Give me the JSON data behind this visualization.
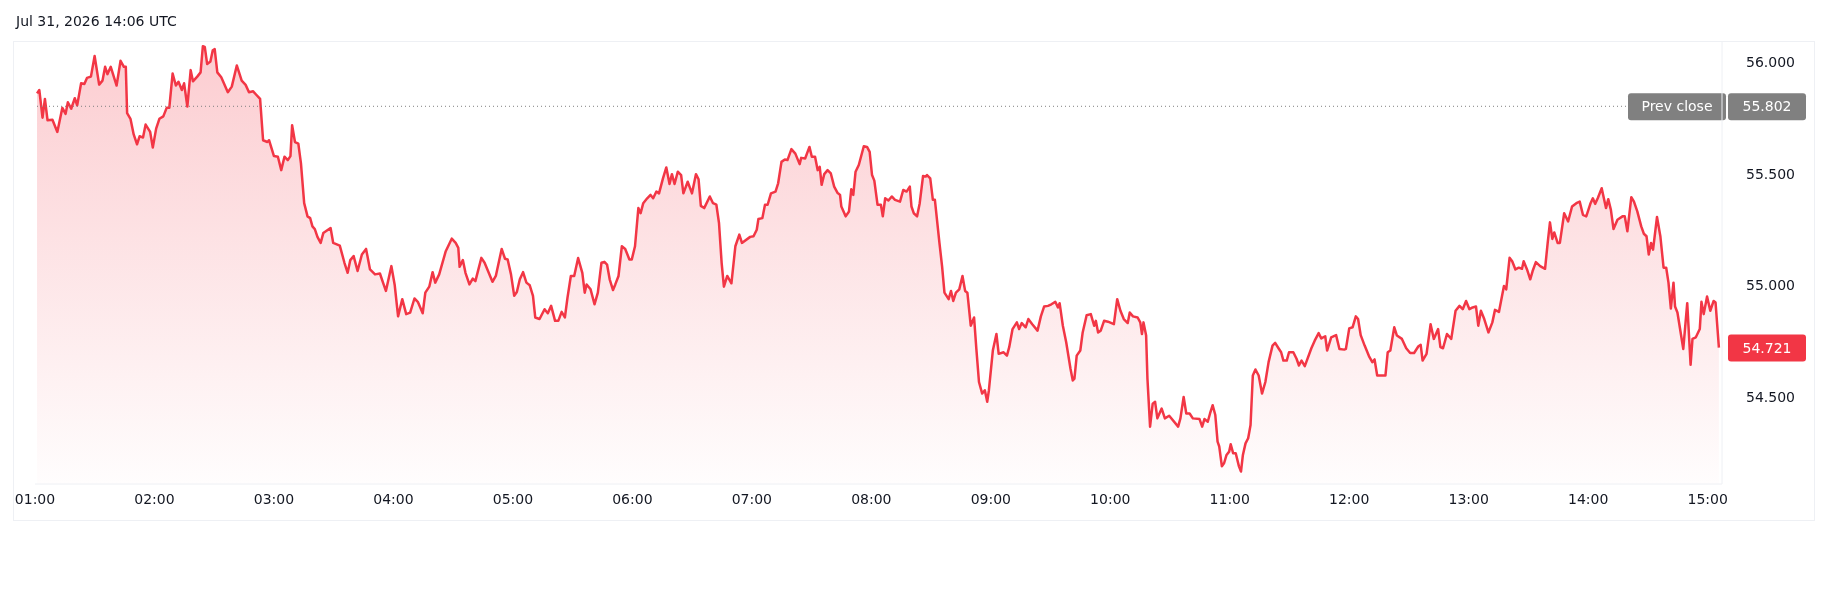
{
  "chart_data": {
    "type": "area",
    "title": "Jul 31, 2026 14:06 UTC",
    "x": [
      1.017,
      1.036,
      1.063,
      1.083,
      1.105,
      1.146,
      1.187,
      1.229,
      1.256,
      1.275,
      1.303,
      1.333,
      1.353,
      1.386,
      1.413,
      1.435,
      1.468,
      1.499,
      1.537,
      1.565,
      1.587,
      1.606,
      1.634,
      1.683,
      1.716,
      1.744,
      1.76,
      1.771,
      1.799,
      1.826,
      1.854,
      1.876,
      1.904,
      1.926,
      1.964,
      1.986,
      2.014,
      2.041,
      2.074,
      2.102,
      2.124,
      2.152,
      2.179,
      2.201,
      2.229,
      2.248,
      2.275,
      2.303,
      2.322,
      2.358,
      2.386,
      2.405,
      2.421,
      2.441,
      2.468,
      2.488,
      2.504,
      2.526,
      2.559,
      2.614,
      2.647,
      2.689,
      2.73,
      2.763,
      2.791,
      2.826,
      2.846,
      2.884,
      2.909,
      2.945,
      2.959,
      3.0,
      3.033,
      3.061,
      3.088,
      3.116,
      3.138,
      3.152,
      3.176,
      3.204,
      3.226,
      3.253,
      3.281,
      3.303,
      3.322,
      3.342,
      3.364,
      3.391,
      3.413,
      3.474,
      3.496,
      3.551,
      3.59,
      3.617,
      3.639,
      3.667,
      3.7,
      3.736,
      3.771,
      3.804,
      3.846,
      3.887,
      3.915,
      3.937,
      3.983,
      4.011,
      4.039,
      4.074,
      4.107,
      4.14,
      4.176,
      4.204,
      4.245,
      4.267,
      4.3,
      4.328,
      4.35,
      4.383,
      4.438,
      4.488,
      4.521,
      4.543,
      4.554,
      4.581,
      4.603,
      4.636,
      4.664,
      4.686,
      4.736,
      4.763,
      4.829,
      4.857,
      4.906,
      4.934,
      4.956,
      4.984,
      5.011,
      5.033,
      5.058,
      5.085,
      5.113,
      5.141,
      5.168,
      5.187,
      5.223,
      5.265,
      5.292,
      5.32,
      5.353,
      5.38,
      5.408,
      5.435,
      5.457,
      5.485,
      5.513,
      5.546,
      5.581,
      5.601,
      5.617,
      5.65,
      5.683,
      5.711,
      5.741,
      5.766,
      5.788,
      5.81,
      5.838,
      5.857,
      5.884,
      5.912,
      5.94,
      5.975,
      5.995,
      6.022,
      6.05,
      6.069,
      6.091,
      6.124,
      6.152,
      6.174,
      6.201,
      6.223,
      6.256,
      6.284,
      6.311,
      6.331,
      6.353,
      6.38,
      6.408,
      6.427,
      6.463,
      6.499,
      6.532,
      6.554,
      6.573,
      6.601,
      6.648,
      6.675,
      6.703,
      6.725,
      6.747,
      6.766,
      6.794,
      6.829,
      6.862,
      6.895,
      6.917,
      6.986,
      7.014,
      7.041,
      7.055,
      7.088,
      7.11,
      7.132,
      7.16,
      7.198,
      7.22,
      7.248,
      7.276,
      7.298,
      7.331,
      7.364,
      7.4,
      7.413,
      7.446,
      7.482,
      7.502,
      7.529,
      7.551,
      7.568,
      7.584,
      7.606,
      7.634,
      7.661,
      7.689,
      7.716,
      7.738,
      7.749,
      7.785,
      7.813,
      7.832,
      7.849,
      7.868,
      7.895,
      7.937,
      7.964,
      7.986,
      8.006,
      8.025,
      8.052,
      8.08,
      8.096,
      8.116,
      8.143,
      8.171,
      8.198,
      8.24,
      8.267,
      8.295,
      8.322,
      8.336,
      8.355,
      8.383,
      8.405,
      8.433,
      8.455,
      8.466,
      8.493,
      8.515,
      8.532,
      8.57,
      8.592,
      8.612,
      8.647,
      8.667,
      8.686,
      8.708,
      8.736,
      8.763,
      8.785,
      8.804,
      8.832,
      8.86,
      8.879,
      8.901,
      8.928,
      8.95,
      8.97,
      8.984,
      9.017,
      9.047,
      9.066,
      9.107,
      9.135,
      9.154,
      9.182,
      9.218,
      9.237,
      9.259,
      9.292,
      9.314,
      9.347,
      9.391,
      9.419,
      9.446,
      9.479,
      9.507,
      9.54,
      9.562,
      9.576,
      9.603,
      9.631,
      9.667,
      9.686,
      9.7,
      9.719,
      9.749,
      9.769,
      9.802,
      9.837,
      9.865,
      9.879,
      9.898,
      9.92,
      9.948,
      9.981,
      10.03,
      10.058,
      10.085,
      10.113,
      10.146,
      10.163,
      10.19,
      10.229,
      10.251,
      10.265,
      10.278,
      10.3,
      10.311,
      10.333,
      10.355,
      10.375,
      10.394,
      10.43,
      10.457,
      10.493,
      10.568,
      10.587,
      10.614,
      10.636,
      10.664,
      10.691,
      10.747,
      10.769,
      10.788,
      10.816,
      10.835,
      10.857,
      10.879,
      10.898,
      10.912,
      10.934,
      10.953,
      10.973,
      10.995,
      11.008,
      11.028,
      11.05,
      11.077,
      11.094,
      11.11,
      11.132,
      11.154,
      11.174,
      11.193,
      11.215,
      11.242,
      11.27,
      11.298,
      11.325,
      11.358,
      11.38,
      11.408,
      11.43,
      11.449,
      11.477,
      11.496,
      11.532,
      11.559,
      11.579,
      11.601,
      11.628,
      11.683,
      11.711,
      11.744,
      11.766,
      11.799,
      11.815,
      11.849,
      11.89,
      11.918,
      11.959,
      11.972,
      12.0,
      12.028,
      12.055,
      12.074,
      12.096,
      12.129,
      12.165,
      12.193,
      12.212,
      12.234,
      12.262,
      12.303,
      12.322,
      12.344,
      12.377,
      12.399,
      12.441,
      12.477,
      12.51,
      12.543,
      12.579,
      12.598,
      12.614,
      12.647,
      12.681,
      12.708,
      12.744,
      12.763,
      12.785,
      12.818,
      12.854,
      12.89,
      12.923,
      12.95,
      12.978,
      13.006,
      13.033,
      13.061,
      13.08,
      13.102,
      13.13,
      13.165,
      13.198,
      13.22,
      13.253,
      13.295,
      13.314,
      13.342,
      13.364,
      13.391,
      13.419,
      13.446,
      13.46,
      13.488,
      13.515,
      13.535,
      13.562,
      13.598,
      13.639,
      13.661,
      13.68,
      13.7,
      13.716,
      13.744,
      13.763,
      13.799,
      13.832,
      13.865,
      13.901,
      13.929,
      13.956,
      13.984,
      14.02,
      14.039,
      14.058,
      14.08,
      14.113,
      14.149,
      14.168,
      14.19,
      14.212,
      14.245,
      14.287,
      14.306,
      14.328,
      14.361,
      14.383,
      14.411,
      14.444,
      14.466,
      14.488,
      14.507,
      14.526,
      14.543,
      14.576,
      14.604,
      14.631,
      14.653,
      14.672,
      14.692,
      14.714,
      14.727,
      14.747,
      14.796,
      14.829,
      14.857,
      14.873,
      14.901,
      14.934,
      14.948,
      14.967,
      14.995,
      15.022,
      15.05,
      15.066,
      15.094
    ],
    "series": [
      {
        "color": "#f23645",
        "values": [
          55.86,
          55.875,
          55.751,
          55.835,
          55.739,
          55.742,
          55.687,
          55.795,
          55.768,
          55.82,
          55.791,
          55.838,
          55.806,
          55.905,
          55.902,
          55.929,
          55.935,
          56.027,
          55.899,
          55.917,
          55.979,
          55.946,
          55.979,
          55.895,
          56.006,
          55.979,
          55.979,
          55.771,
          55.746,
          55.676,
          55.632,
          55.668,
          55.662,
          55.72,
          55.687,
          55.617,
          55.702,
          55.746,
          55.757,
          55.795,
          55.795,
          55.949,
          55.895,
          55.912,
          55.875,
          55.905,
          55.801,
          55.964,
          55.914,
          55.935,
          55.954,
          56.071,
          56.068,
          55.991,
          56.003,
          56.053,
          56.058,
          55.954,
          55.932,
          55.865,
          55.89,
          55.985,
          55.917,
          55.898,
          55.865,
          55.869,
          55.857,
          55.835,
          55.65,
          55.642,
          55.65,
          55.579,
          55.576,
          55.516,
          55.576,
          55.561,
          55.579,
          55.717,
          55.642,
          55.635,
          55.546,
          55.368,
          55.309,
          55.301,
          55.264,
          55.252,
          55.217,
          55.19,
          55.234,
          55.257,
          55.19,
          55.178,
          55.101,
          55.056,
          55.113,
          55.131,
          55.064,
          55.138,
          55.163,
          55.071,
          55.049,
          55.053,
          55.009,
          54.975,
          55.086,
          55.0,
          54.861,
          54.938,
          54.871,
          54.878,
          54.941,
          54.926,
          54.875,
          54.967,
          54.994,
          55.059,
          55.012,
          55.049,
          55.153,
          55.209,
          55.19,
          55.168,
          55.083,
          55.113,
          55.056,
          55.004,
          55.03,
          55.019,
          55.123,
          55.101,
          55.016,
          55.042,
          55.163,
          55.119,
          55.116,
          55.049,
          54.953,
          54.97,
          55.027,
          55.059,
          55.012,
          55.0,
          54.953,
          54.856,
          54.849,
          54.893,
          54.875,
          54.908,
          54.841,
          54.841,
          54.881,
          54.856,
          54.945,
          55.042,
          55.042,
          55.122,
          55.056,
          54.967,
          55.004,
          54.982,
          54.915,
          54.967,
          55.101,
          55.105,
          55.093,
          55.027,
          54.979,
          55.004,
          55.042,
          55.175,
          55.163,
          55.116,
          55.116,
          55.175,
          55.346,
          55.323,
          55.368,
          55.39,
          55.405,
          55.39,
          55.42,
          55.412,
          55.479,
          55.528,
          55.454,
          55.498,
          55.454,
          55.509,
          55.494,
          55.412,
          55.464,
          55.412,
          55.498,
          55.475,
          55.356,
          55.346,
          55.398,
          55.368,
          55.361,
          55.279,
          55.101,
          54.994,
          55.042,
          55.009,
          55.175,
          55.227,
          55.19,
          55.217,
          55.22,
          55.249,
          55.297,
          55.301,
          55.361,
          55.361,
          55.412,
          55.42,
          55.457,
          55.553,
          55.564,
          55.561,
          55.61,
          55.59,
          55.543,
          55.571,
          55.568,
          55.62,
          55.576,
          55.576,
          55.516,
          55.531,
          55.45,
          55.498,
          55.516,
          55.501,
          55.442,
          55.415,
          55.405,
          55.353,
          55.309,
          55.331,
          55.43,
          55.405,
          55.509,
          55.539,
          55.623,
          55.62,
          55.598,
          55.494,
          55.469,
          55.361,
          55.361,
          55.309,
          55.39,
          55.38,
          55.398,
          55.383,
          55.375,
          55.427,
          55.42,
          55.442,
          55.353,
          55.323,
          55.309,
          55.368,
          55.49,
          55.487,
          55.494,
          55.479,
          55.383,
          55.383,
          55.19,
          55.086,
          54.967,
          54.938,
          54.975,
          54.93,
          54.967,
          54.982,
          55.042,
          54.975,
          54.967,
          54.819,
          54.856,
          54.715,
          54.567,
          54.515,
          54.53,
          54.478,
          54.53,
          54.708,
          54.782,
          54.693,
          54.7,
          54.685,
          54.723,
          54.804,
          54.834,
          54.804,
          54.831,
          54.812,
          54.849,
          54.826,
          54.797,
          54.861,
          54.905,
          54.908,
          54.915,
          54.926,
          54.901,
          54.92,
          54.819,
          54.745,
          54.626,
          54.574,
          54.582,
          54.685,
          54.708,
          54.789,
          54.866,
          54.871,
          54.819,
          54.841,
          54.789,
          54.797,
          54.841,
          54.837,
          54.826,
          54.938,
          54.886,
          54.849,
          54.831,
          54.878,
          54.861,
          54.856,
          54.834,
          54.782,
          54.834,
          54.775,
          54.582,
          54.367,
          54.47,
          54.478,
          54.404,
          54.448,
          54.404,
          54.416,
          54.367,
          54.404,
          54.5,
          54.426,
          54.426,
          54.404,
          54.401,
          54.367,
          54.401,
          54.389,
          54.426,
          54.463,
          54.419,
          54.3,
          54.278,
          54.189,
          54.204,
          54.24,
          54.255,
          54.288,
          54.248,
          54.248,
          54.189,
          54.166,
          54.24,
          54.292,
          54.315,
          54.374,
          54.596,
          54.623,
          54.596,
          54.515,
          54.567,
          54.656,
          54.73,
          54.742,
          54.718,
          54.7,
          54.663,
          54.663,
          54.7,
          54.7,
          54.671,
          54.641,
          54.663,
          54.638,
          54.718,
          54.752,
          54.786,
          54.762,
          54.772,
          54.708,
          54.767,
          54.777,
          54.715,
          54.712,
          54.715,
          54.807,
          54.812,
          54.861,
          54.849,
          54.777,
          54.73,
          54.683,
          54.656,
          54.668,
          54.596,
          54.596,
          54.596,
          54.7,
          54.708,
          54.812,
          54.775,
          54.76,
          54.718,
          54.697,
          54.697,
          54.727,
          54.733,
          54.663,
          54.693,
          54.826,
          54.76,
          54.804,
          54.723,
          54.718,
          54.782,
          54.76,
          54.886,
          54.908,
          54.893,
          54.93,
          54.893,
          54.901,
          54.905,
          54.819,
          54.886,
          54.849,
          54.789,
          54.834,
          54.89,
          54.881,
          54.997,
          54.982,
          55.123,
          55.108,
          55.071,
          55.079,
          55.074,
          55.108,
          55.071,
          55.027,
          55.064,
          55.104,
          55.086,
          55.074,
          55.19,
          55.282,
          55.208,
          55.237,
          55.19,
          55.19,
          55.323,
          55.286,
          55.353,
          55.368,
          55.375,
          55.316,
          55.309,
          55.368,
          55.39,
          55.365,
          55.39,
          55.435,
          55.346,
          55.386,
          55.338,
          55.252,
          55.294,
          55.309,
          55.309,
          55.242,
          55.395,
          55.375,
          55.331,
          55.264,
          55.231,
          55.22,
          55.138,
          55.19,
          55.16,
          55.306,
          55.22,
          55.079,
          55.079,
          55.012,
          54.896,
          55.012,
          54.905,
          54.878,
          54.715,
          54.92,
          54.644,
          54.76,
          54.767,
          54.804,
          54.926,
          54.871,
          54.95,
          54.886,
          54.93,
          54.923,
          54.721
        ]
      }
    ],
    "xlim": [
      1,
      15.12
    ],
    "xticks": [
      {
        "value": 1,
        "label": "01:00"
      },
      {
        "value": 2,
        "label": "02:00"
      },
      {
        "value": 3,
        "label": "03:00"
      },
      {
        "value": 4,
        "label": "04:00"
      },
      {
        "value": 5,
        "label": "05:00"
      },
      {
        "value": 6,
        "label": "06:00"
      },
      {
        "value": 7,
        "label": "07:00"
      },
      {
        "value": 8,
        "label": "08:00"
      },
      {
        "value": 9,
        "label": "09:00"
      },
      {
        "value": 10,
        "label": "10:00"
      },
      {
        "value": 11,
        "label": "11:00"
      },
      {
        "value": 12,
        "label": "12:00"
      },
      {
        "value": 13,
        "label": "13:00"
      },
      {
        "value": 14,
        "label": "14:00"
      },
      {
        "value": 15,
        "label": "15:00"
      }
    ],
    "ylim": [
      54.11,
      56.09
    ],
    "yticks": [
      {
        "value": 54.5,
        "label": "54.500"
      },
      {
        "value": 55,
        "label": "55.000"
      },
      {
        "value": 55.5,
        "label": "55.500"
      },
      {
        "value": 55.802,
        "label": "55.802"
      },
      {
        "value": 56,
        "label": "56.000"
      }
    ],
    "ref_lines": [
      {
        "axis": "y",
        "value": 55.802,
        "label": "Prev close",
        "color": "#808080",
        "line_style": "dotted"
      }
    ],
    "annotations": [
      {
        "text": "54.721",
        "x": 15.094,
        "y": 54.721
      }
    ]
  }
}
